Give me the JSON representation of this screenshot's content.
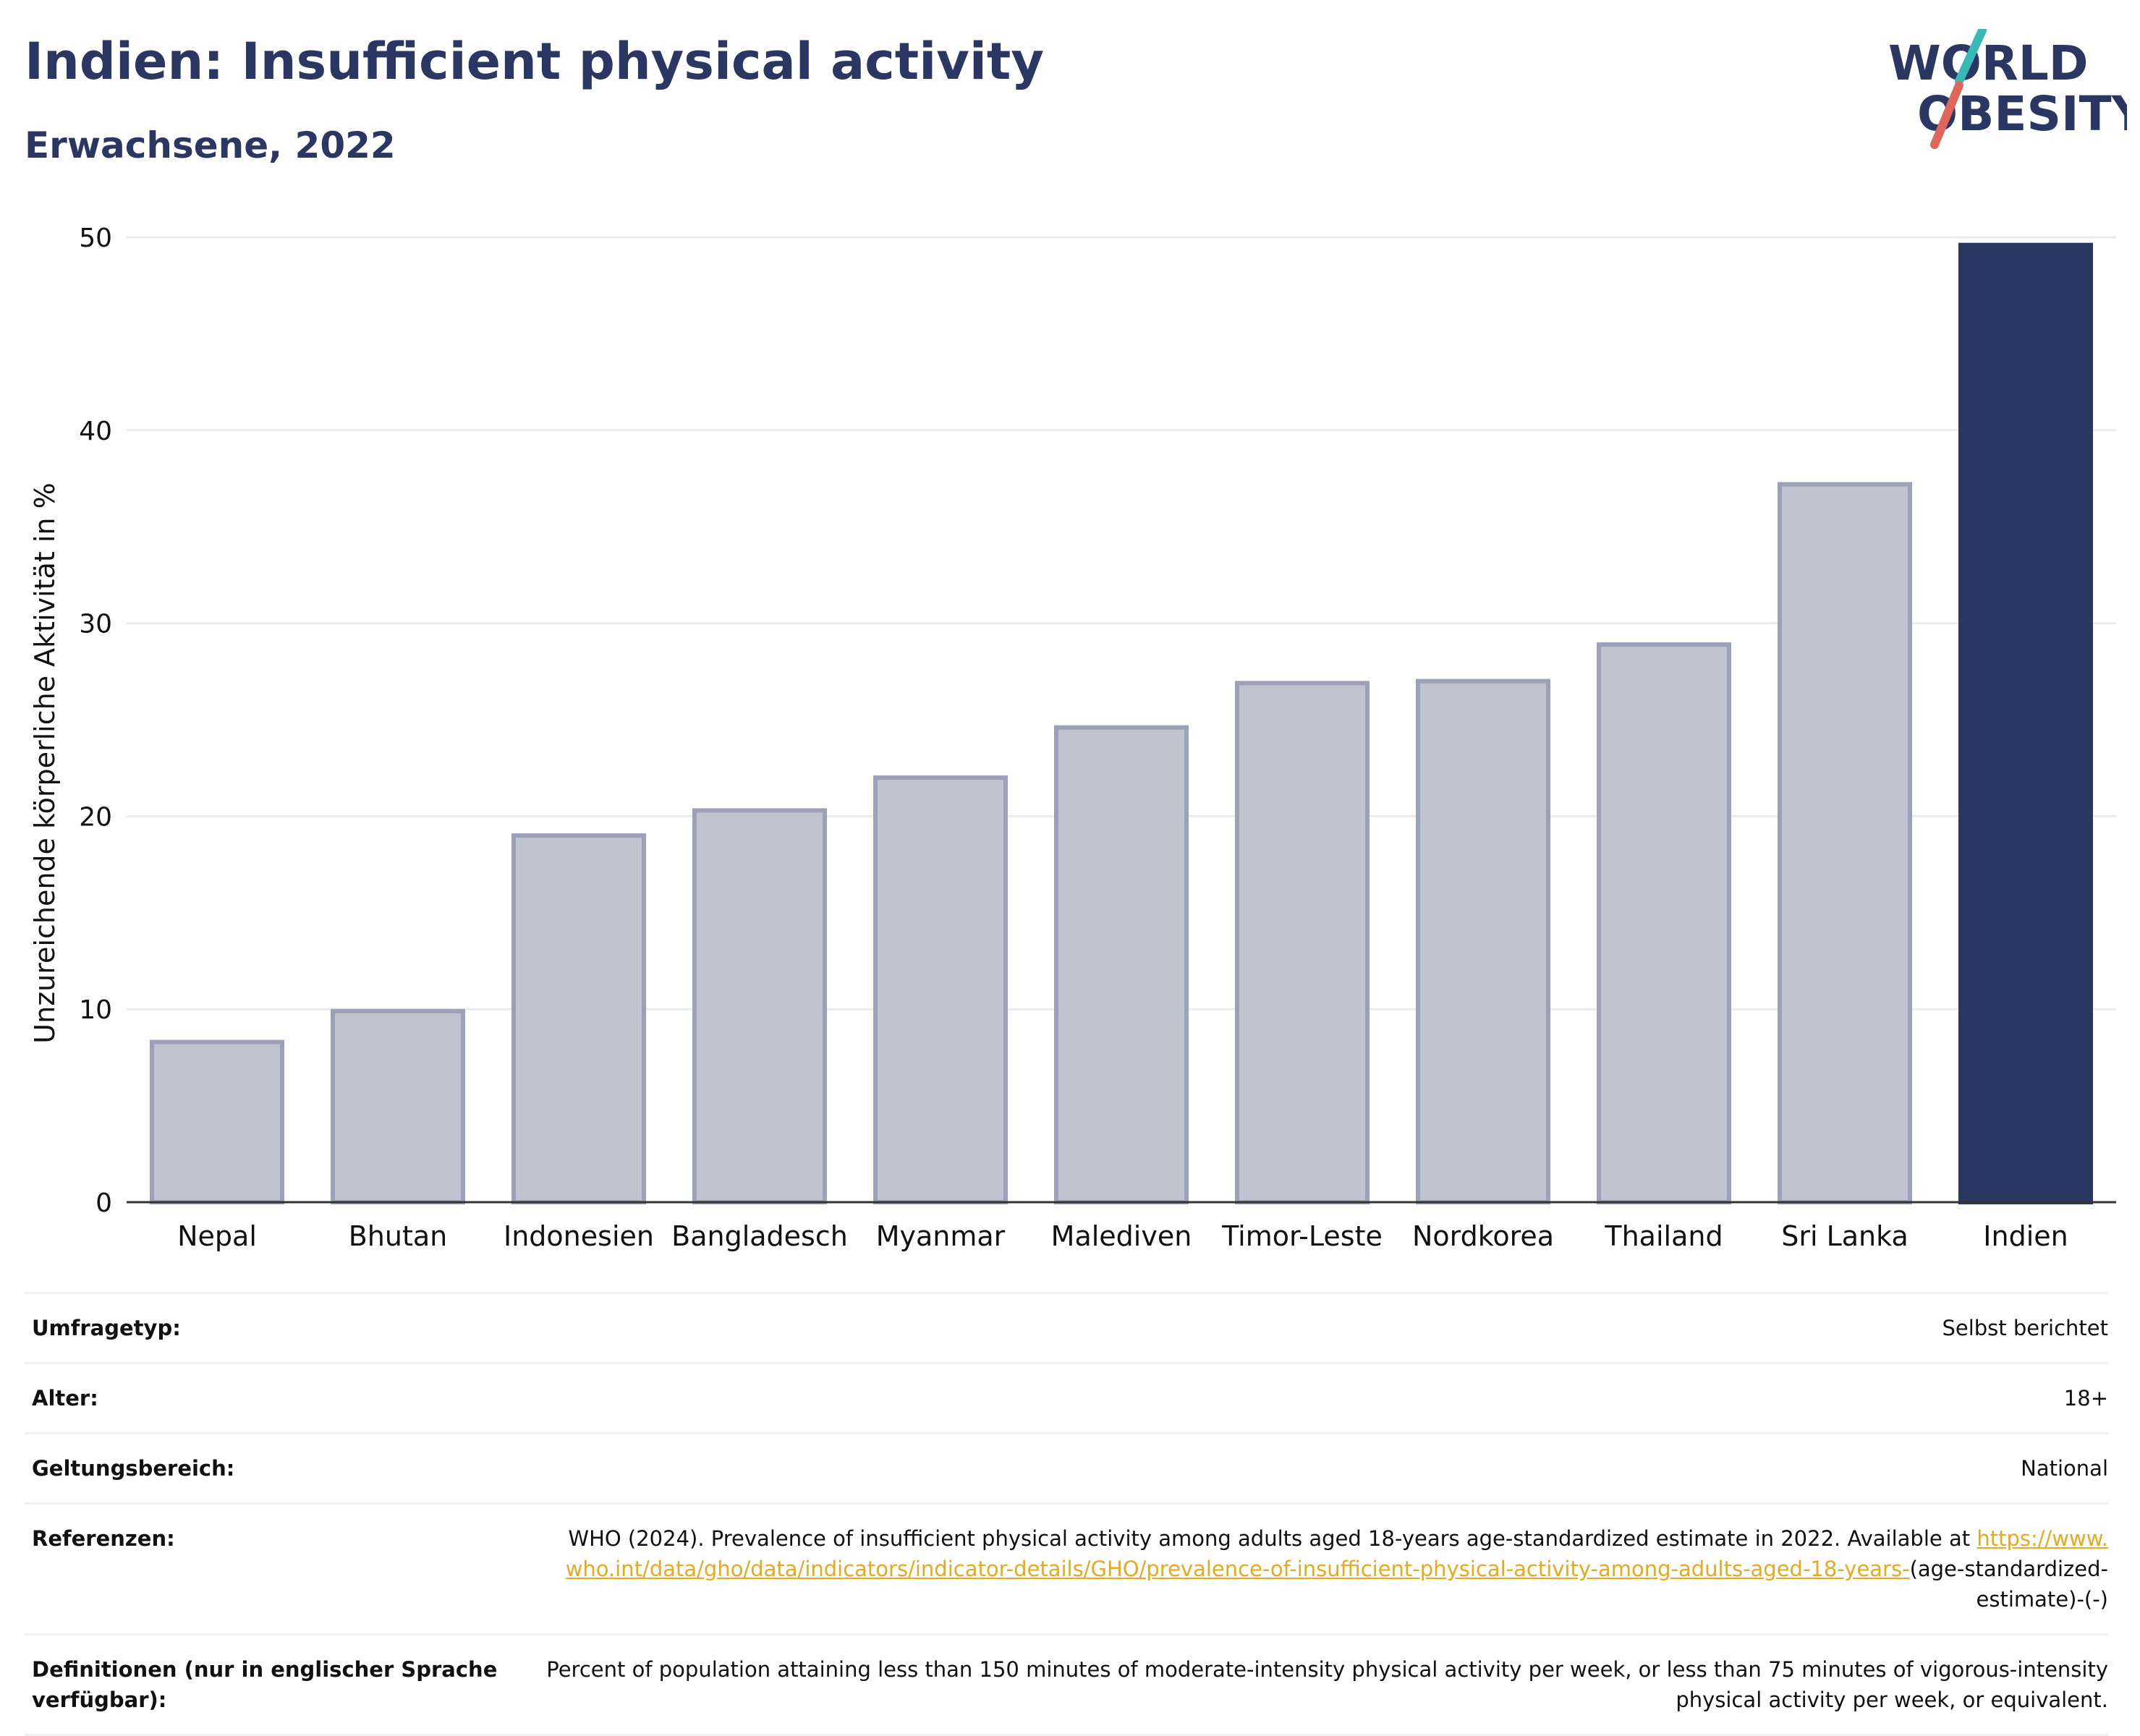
{
  "header": {
    "title": "Indien: Insufficient physical activity",
    "subtitle": "Erwachsene, 2022"
  },
  "logo": {
    "line1": "WORLD",
    "line2": "OBESITY",
    "colors": {
      "text": "#2b3763",
      "slash_top": "#38b9b8",
      "slash_bottom": "#e0665a"
    }
  },
  "colors": {
    "bar": "#bfc3d0",
    "bar_border": "#9ba1b8",
    "highlight": "#2b3763",
    "grid": "#e9ebf0",
    "link": "#e7a91d"
  },
  "chart_data": {
    "type": "bar",
    "categories": [
      "Nepal",
      "Bhutan",
      "Indonesien",
      "Bangladesch",
      "Myanmar",
      "Malediven",
      "Timor-Leste",
      "Nordkorea",
      "Thailand",
      "Sri Lanka",
      "Indien"
    ],
    "values": [
      8.3,
      9.9,
      19.0,
      20.3,
      22.0,
      24.6,
      26.9,
      27.0,
      28.9,
      37.2,
      49.6
    ],
    "highlight": "Indien",
    "ylabel": "Unzureichende körperliche Aktivität in %",
    "ylim": [
      0,
      50
    ],
    "yticks": [
      0,
      10,
      20,
      30,
      40,
      50
    ],
    "grid": true
  },
  "info": {
    "rows": [
      {
        "label": "Umfragetyp:",
        "value": "Selbst berichtet"
      },
      {
        "label": "Alter:",
        "value": "18+"
      },
      {
        "label": "Geltungsbereich:",
        "value": "National"
      }
    ],
    "references": {
      "label": "Referenzen:",
      "text": "WHO (2024). Prevalence of insufficient physical activity among adults aged 18-years age-standardized estimate in 2022. Available at",
      "link": "https://www.who.int/data/gho/data/indicators/indicator-details/GHO/prevalence-of-insufficient-physical-activity-among-adults-aged-18-years-",
      "suffix": "(age-standardized-estimate)-(-)"
    },
    "definitions": {
      "label": "Definitionen (nur in englischer Sprache verfügbar):",
      "value": "Percent of population attaining less than 150 minutes of moderate-intensity physical activity per week, or less than 75 minutes of vigorous-intensity physical activity per week, or equivalent."
    }
  }
}
